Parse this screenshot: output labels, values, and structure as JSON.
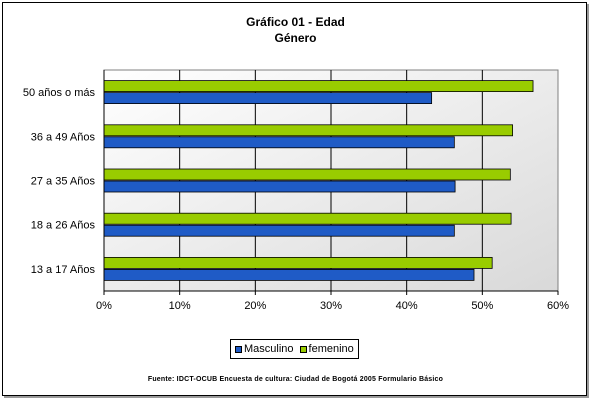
{
  "chart_data": {
    "type": "bar",
    "orientation": "horizontal",
    "title": "Gráfico 01 - Edad",
    "subtitle": "Género",
    "categories": [
      "50 años o más",
      "36 a 49 Años",
      "27 a 35 Años",
      "18 a 26 Años",
      "13 a 17 Años"
    ],
    "series": [
      {
        "name": "femenino",
        "color": "#99CC00",
        "values": [
          56.7,
          54.0,
          53.7,
          53.8,
          51.3
        ]
      },
      {
        "name": "Masculino",
        "color": "#1F5BC6",
        "values": [
          43.3,
          46.3,
          46.4,
          46.3,
          48.9
        ]
      }
    ],
    "xlim": [
      0,
      60
    ],
    "xticks": [
      "0%",
      "10%",
      "20%",
      "30%",
      "40%",
      "50%",
      "60%"
    ],
    "grid": true,
    "legend": {
      "placement": "bottom",
      "items": [
        "Masculino",
        "femenino"
      ]
    },
    "source": "Fuente: IDCT-OCUB Encuesta de cultura: Ciudad de Bogotá 2005 Formulario Básico"
  }
}
